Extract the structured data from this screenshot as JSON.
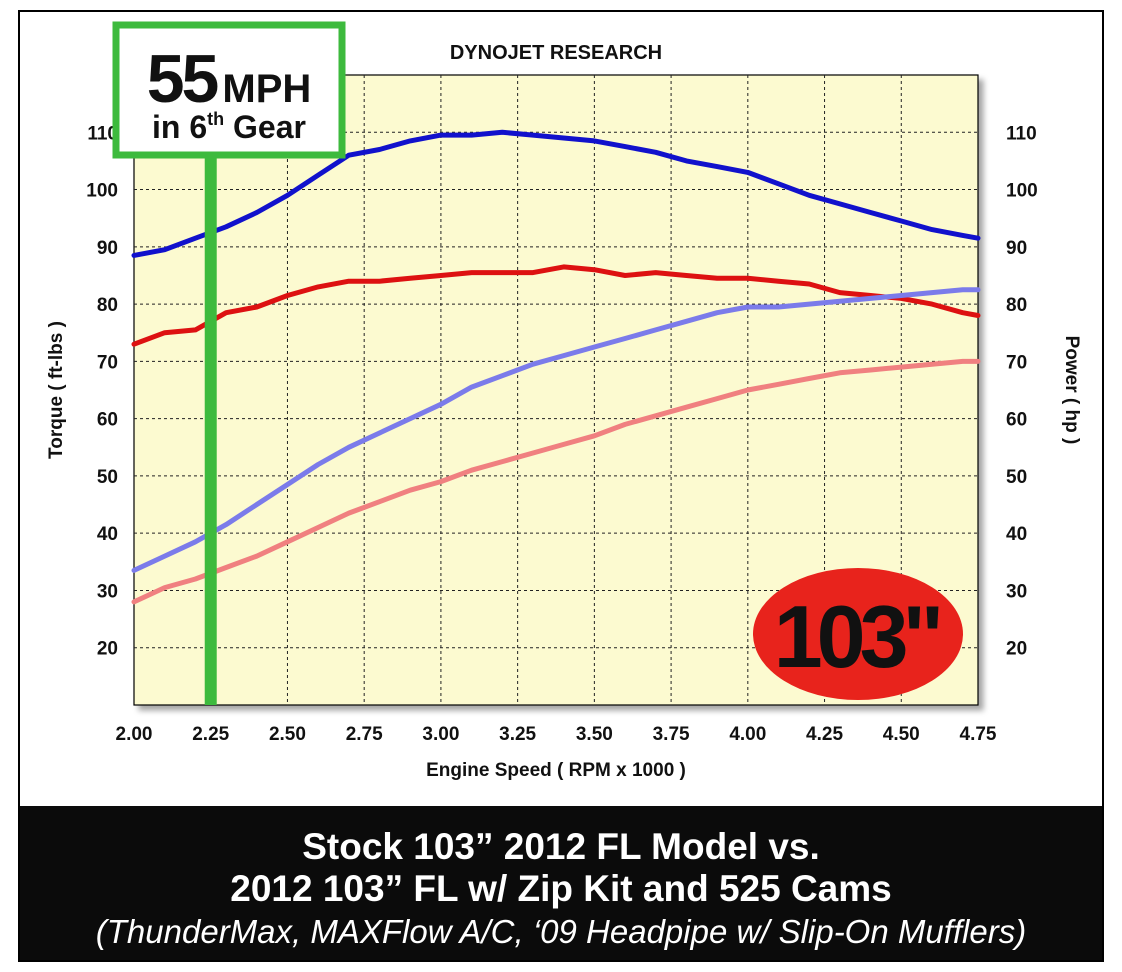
{
  "chart_data": {
    "type": "line",
    "title": "DYNOJET RESEARCH",
    "xlabel": "Engine Speed ( RPM x 1000 )",
    "ylabel_left": "Torque ( ft-lbs )",
    "ylabel_right": "Power ( hp )",
    "xlim": [
      2.0,
      4.75
    ],
    "ylim": [
      10,
      120
    ],
    "x_ticks": [
      "2.00",
      "2.25",
      "2.50",
      "2.75",
      "3.00",
      "3.25",
      "3.50",
      "3.75",
      "4.00",
      "4.25",
      "4.50",
      "4.75"
    ],
    "y_ticks": [
      "20",
      "30",
      "40",
      "50",
      "60",
      "70",
      "80",
      "90",
      "100",
      "110"
    ],
    "grid": true,
    "series": [
      {
        "color": "#1111cc",
        "x": [
          2.0,
          2.1,
          2.2,
          2.3,
          2.4,
          2.5,
          2.6,
          2.7,
          2.8,
          2.9,
          3.0,
          3.1,
          3.2,
          3.3,
          3.4,
          3.5,
          3.6,
          3.7,
          3.8,
          3.9,
          4.0,
          4.1,
          4.2,
          4.3,
          4.4,
          4.5,
          4.6,
          4.7,
          4.75
        ],
        "y": [
          88.5,
          89.5,
          91.5,
          93.5,
          96,
          99,
          102.5,
          106,
          107,
          108.5,
          109.5,
          109.5,
          110,
          109.5,
          109,
          108.5,
          107.5,
          106.5,
          105,
          104,
          103,
          101,
          99,
          97.5,
          96,
          94.5,
          93,
          92,
          91.5
        ]
      },
      {
        "color": "#dd1111",
        "x": [
          2.0,
          2.1,
          2.2,
          2.3,
          2.4,
          2.5,
          2.6,
          2.7,
          2.8,
          2.9,
          3.0,
          3.1,
          3.2,
          3.3,
          3.4,
          3.5,
          3.6,
          3.7,
          3.8,
          3.9,
          4.0,
          4.1,
          4.2,
          4.3,
          4.4,
          4.5,
          4.6,
          4.7,
          4.75
        ],
        "y": [
          73,
          75,
          75.5,
          78.5,
          79.5,
          81.5,
          83,
          84,
          84,
          84.5,
          85,
          85.5,
          85.5,
          85.5,
          86.5,
          86,
          85,
          85.5,
          85,
          84.5,
          84.5,
          84,
          83.5,
          82,
          81.5,
          81,
          80,
          78.5,
          78
        ]
      },
      {
        "color": "#7b7bea",
        "x": [
          2.0,
          2.1,
          2.2,
          2.3,
          2.4,
          2.5,
          2.6,
          2.7,
          2.8,
          2.9,
          3.0,
          3.1,
          3.2,
          3.3,
          3.4,
          3.5,
          3.6,
          3.7,
          3.8,
          3.9,
          4.0,
          4.1,
          4.2,
          4.3,
          4.4,
          4.5,
          4.6,
          4.7,
          4.75
        ],
        "y": [
          33.5,
          36,
          38.5,
          41.5,
          45,
          48.5,
          52,
          55,
          57.5,
          60,
          62.5,
          65.5,
          67.5,
          69.5,
          71,
          72.5,
          74,
          75.5,
          77,
          78.5,
          79.5,
          79.5,
          80,
          80.5,
          81,
          81.5,
          82,
          82.5,
          82.5
        ]
      },
      {
        "color": "#f08080",
        "x": [
          2.0,
          2.1,
          2.2,
          2.3,
          2.4,
          2.5,
          2.6,
          2.7,
          2.8,
          2.9,
          3.0,
          3.1,
          3.2,
          3.3,
          3.4,
          3.5,
          3.6,
          3.7,
          3.8,
          3.9,
          4.0,
          4.1,
          4.2,
          4.3,
          4.4,
          4.5,
          4.6,
          4.7,
          4.75
        ],
        "y": [
          28,
          30.5,
          32,
          34,
          36,
          38.5,
          41,
          43.5,
          45.5,
          47.5,
          49,
          51,
          52.5,
          54,
          55.5,
          57,
          59,
          60.5,
          62,
          63.5,
          65,
          66,
          67,
          68,
          68.5,
          69,
          69.5,
          70,
          70
        ]
      }
    ],
    "annotations": {
      "speed_marker_x": 2.25,
      "speed_big": "55",
      "speed_unit": "MPH",
      "gear_prefix": "in 6",
      "gear_sup": "th",
      "gear_suffix": " Gear",
      "badge": "103\""
    }
  },
  "caption": {
    "line1": "Stock 103” 2012 FL Model vs.",
    "line2": "2012 103” FL w/ Zip Kit and 525 Cams",
    "line3": "(ThunderMax, MAXFlow A/C, ‘09 Headpipe w/ Slip-On Mufflers)"
  },
  "colors": {
    "plot_bg": "#fcfad0",
    "grid": "#222222",
    "marker": "#3dba3d",
    "badge": "#e8231c",
    "caption_bg": "#0b0b0b"
  }
}
